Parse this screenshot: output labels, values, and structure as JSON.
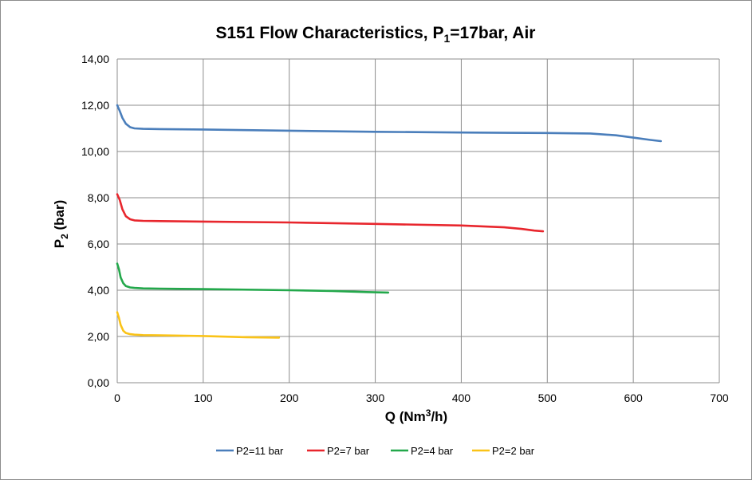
{
  "chart_data": {
    "type": "line",
    "title": {
      "pre": "S151 Flow Characteristics, P",
      "sub": "1",
      "post": "=17bar, Air"
    },
    "xlabel": {
      "pre": "Q (Nm",
      "sup": "3",
      "post": "/h)"
    },
    "ylabel": {
      "pre": "P",
      "sub": "2",
      "post": " (bar)"
    },
    "xlim": [
      0,
      700
    ],
    "ylim": [
      0,
      14
    ],
    "xticks": [
      "0",
      "100",
      "200",
      "300",
      "400",
      "500",
      "600",
      "700"
    ],
    "yticks": [
      "0,00",
      "2,00",
      "4,00",
      "6,00",
      "8,00",
      "10,00",
      "12,00",
      "14,00"
    ],
    "grid": true,
    "legend_position": "bottom",
    "series": [
      {
        "name": "P2=11 bar",
        "color": "#4a7ebb",
        "x": [
          0,
          3,
          6,
          10,
          15,
          20,
          30,
          50,
          100,
          200,
          300,
          400,
          500,
          550,
          580,
          600,
          620,
          632
        ],
        "y": [
          12.0,
          11.75,
          11.45,
          11.2,
          11.05,
          11.0,
          10.98,
          10.97,
          10.95,
          10.9,
          10.85,
          10.82,
          10.8,
          10.78,
          10.7,
          10.6,
          10.5,
          10.45
        ]
      },
      {
        "name": "P2=7 bar",
        "color": "#e8262d",
        "x": [
          0,
          3,
          6,
          10,
          15,
          20,
          30,
          50,
          100,
          200,
          300,
          400,
          450,
          470,
          485,
          495
        ],
        "y": [
          8.15,
          7.9,
          7.5,
          7.2,
          7.07,
          7.02,
          7.0,
          6.99,
          6.97,
          6.93,
          6.87,
          6.8,
          6.72,
          6.65,
          6.58,
          6.55
        ]
      },
      {
        "name": "P2=4 bar",
        "color": "#23a84b",
        "x": [
          0,
          2,
          4,
          7,
          10,
          15,
          20,
          30,
          50,
          100,
          200,
          250,
          290,
          315
        ],
        "y": [
          5.15,
          4.9,
          4.55,
          4.3,
          4.18,
          4.12,
          4.1,
          4.08,
          4.07,
          4.05,
          4.0,
          3.97,
          3.92,
          3.9
        ]
      },
      {
        "name": "P2=2 bar",
        "color": "#fac318",
        "x": [
          0,
          2,
          4,
          7,
          10,
          15,
          20,
          30,
          50,
          100,
          150,
          188
        ],
        "y": [
          3.05,
          2.8,
          2.5,
          2.25,
          2.15,
          2.1,
          2.08,
          2.06,
          2.05,
          2.02,
          1.97,
          1.95
        ]
      }
    ]
  }
}
